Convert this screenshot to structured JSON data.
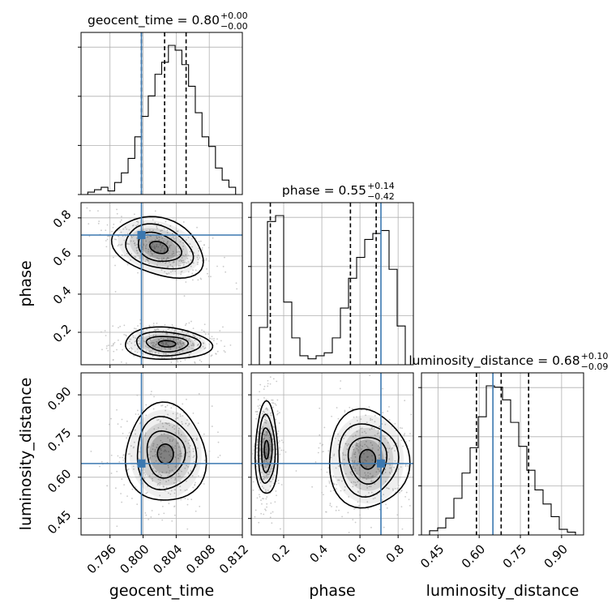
{
  "chart_data": {
    "type": "corner",
    "parameters": [
      "geocent_time",
      "phase",
      "luminosity_distance"
    ],
    "axis_labels": {
      "x": [
        "geocent_time",
        "phase",
        "luminosity_distance"
      ],
      "y": [
        "",
        "phase",
        "luminosity_distance"
      ]
    },
    "titles": [
      {
        "param": "geocent_time",
        "text": "geocent_time = 0.80",
        "upper": "+0.00",
        "lower": "−0.00"
      },
      {
        "param": "phase",
        "text": "phase = 0.55",
        "upper": "+0.14",
        "lower": "−0.42"
      },
      {
        "param": "luminosity_distance",
        "text": "luminosity_distance = 0.68",
        "upper": "+0.10",
        "lower": "−0.09"
      }
    ],
    "ranges": {
      "geocent_time": [
        0.7925,
        0.812
      ],
      "phase": [
        0.03,
        0.88
      ],
      "luminosity_distance": [
        0.39,
        0.98
      ]
    },
    "ticks": {
      "geocent_time": {
        "values": [
          0.796,
          0.8,
          0.804,
          0.808,
          0.812
        ],
        "labels": [
          "0.796",
          "0.800",
          "0.804",
          "0.808",
          "0.812"
        ]
      },
      "phase": {
        "values": [
          0.2,
          0.4,
          0.6,
          0.8
        ],
        "labels": [
          "0.2",
          "0.4",
          "0.6",
          "0.8"
        ]
      },
      "luminosity_distance": {
        "values": [
          0.45,
          0.6,
          0.75,
          0.9
        ],
        "labels": [
          "0.45",
          "0.60",
          "0.75",
          "0.90"
        ]
      }
    },
    "truths": {
      "geocent_time": 0.7998,
      "phase": 0.71,
      "luminosity_distance": 0.65
    },
    "quantiles": {
      "geocent_time": [
        0.7998,
        0.8026,
        0.8052
      ],
      "phase": [
        0.13,
        0.55,
        0.685
      ],
      "luminosity_distance": [
        0.59,
        0.68,
        0.78
      ]
    },
    "histograms": {
      "geocent_time": {
        "edges_range": [
          0.7925,
          0.812
        ],
        "counts": [
          0,
          2,
          4,
          6,
          3,
          10,
          18,
          30,
          48,
          65,
          82,
          100,
          110,
          124,
          120,
          108,
          90,
          68,
          48,
          40,
          22,
          12,
          6,
          0
        ]
      },
      "phase": {
        "edges_range": [
          0.03,
          0.88
        ],
        "counts": [
          0,
          25,
          96,
          100,
          42,
          18,
          6,
          4,
          6,
          8,
          18,
          38,
          58,
          72,
          84,
          88,
          90,
          64,
          26,
          0
        ]
      },
      "luminosity_distance": {
        "edges_range": [
          0.39,
          0.98
        ],
        "counts": [
          0,
          3,
          5,
          12,
          26,
          44,
          62,
          84,
          106,
          105,
          96,
          80,
          63,
          46,
          32,
          22,
          13,
          4,
          2,
          0
        ]
      }
    },
    "pairs": [
      {
        "x": "geocent_time",
        "y": "phase",
        "modes": [
          {
            "cx": 0.8019,
            "cy": 0.645,
            "sx": 0.0027,
            "sy": 0.07,
            "rho": -0.55
          },
          {
            "cx": 0.8029,
            "cy": 0.14,
            "sx": 0.0025,
            "sy": 0.04,
            "rho": -0.1
          }
        ]
      },
      {
        "x": "geocent_time",
        "y": "luminosity_distance",
        "modes": [
          {
            "cx": 0.8027,
            "cy": 0.685,
            "sx": 0.0023,
            "sy": 0.085,
            "rho": 0.05
          }
        ]
      },
      {
        "x": "phase",
        "y": "luminosity_distance",
        "modes": [
          {
            "cx": 0.11,
            "cy": 0.7,
            "sx": 0.028,
            "sy": 0.08,
            "rho": 0.0
          },
          {
            "cx": 0.64,
            "cy": 0.665,
            "sx": 0.1,
            "sy": 0.085,
            "rho": 0.05
          }
        ]
      }
    ],
    "colors": {
      "truth": "#3b78b0",
      "line": "#000000",
      "points": "#b8b8b8"
    },
    "grid": true
  }
}
